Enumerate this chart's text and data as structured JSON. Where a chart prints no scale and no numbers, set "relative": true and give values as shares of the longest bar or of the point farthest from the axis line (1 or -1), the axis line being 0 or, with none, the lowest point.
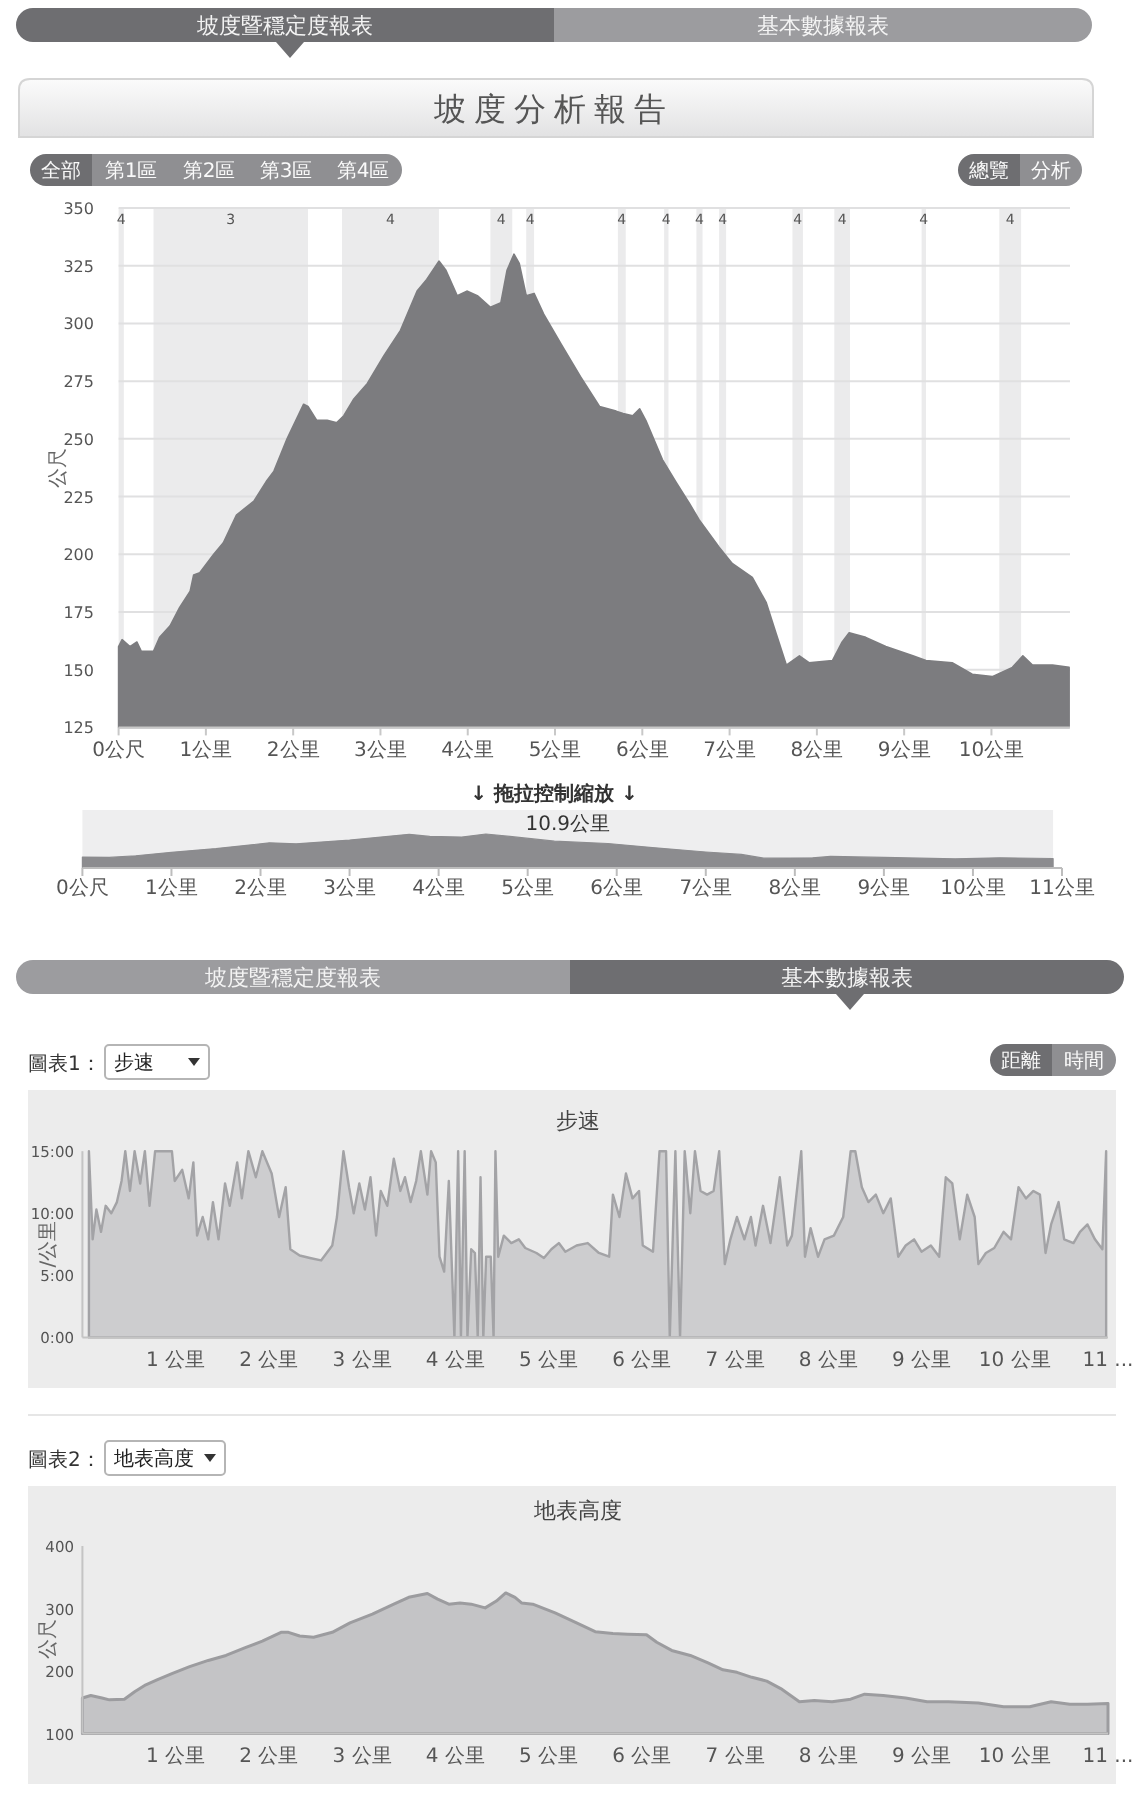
{
  "chart_data": [
    {
      "type": "area",
      "title": "坡度分析報告",
      "ylabel": "公尺",
      "series": [
        {
          "color": "#7c7c7f",
          "x": [
            0,
            0.04,
            0.13,
            0.21,
            0.26,
            0.4,
            0.47,
            0.59,
            0.7,
            0.82,
            0.86,
            0.93,
            1.09,
            1.2,
            1.35,
            1.55,
            1.7,
            1.78,
            1.93,
            2.12,
            2.17,
            2.27,
            2.39,
            2.5,
            2.58,
            2.69,
            2.85,
            3.04,
            3.23,
            3.42,
            3.53,
            3.67,
            3.75,
            3.88,
            3.99,
            4.11,
            4.26,
            4.38,
            4.45,
            4.53,
            4.59,
            4.67,
            4.76,
            4.87,
            5.07,
            5.29,
            5.51,
            5.7,
            5.78,
            5.89,
            5.97,
            6.04,
            6.23,
            6.39,
            6.54,
            6.65,
            6.88,
            7.03,
            7.26,
            7.42,
            7.53,
            7.65,
            7.8,
            7.91,
            8.18,
            8.29,
            8.37,
            8.56,
            8.79,
            9.1,
            9.25,
            9.55,
            9.78,
            10.01,
            10.24,
            10.36,
            10.47,
            10.7,
            10.89
          ],
          "values": [
            160,
            163,
            160,
            162,
            158,
            158,
            164,
            169,
            177,
            184,
            191,
            192,
            200,
            205,
            217,
            223,
            232,
            236,
            250,
            265,
            264,
            258,
            258,
            257,
            260,
            267,
            274,
            286,
            297,
            314,
            319,
            327,
            323,
            312,
            314,
            312,
            307,
            309,
            323,
            330,
            326,
            312,
            313,
            304,
            291,
            277,
            264,
            262,
            261,
            260,
            263,
            258,
            241,
            231,
            222,
            215,
            203,
            196,
            190,
            179,
            166,
            152,
            156,
            153,
            154,
            162,
            166,
            164,
            160,
            156,
            154,
            153,
            148,
            147,
            151,
            156,
            152,
            152,
            151
          ]
        }
      ],
      "xlim": [
        0,
        10.9
      ],
      "xticks": [
        {
          "value": 0,
          "label": "0公尺"
        },
        {
          "value": 1,
          "label": "1公里"
        },
        {
          "value": 2,
          "label": "2公里"
        },
        {
          "value": 3,
          "label": "3公里"
        },
        {
          "value": 4,
          "label": "4公里"
        },
        {
          "value": 5,
          "label": "5公里"
        },
        {
          "value": 6,
          "label": "6公里"
        },
        {
          "value": 7,
          "label": "7公里"
        },
        {
          "value": 8,
          "label": "8公里"
        },
        {
          "value": 9,
          "label": "9公里"
        },
        {
          "value": 10,
          "label": "10公里"
        }
      ],
      "ylim": [
        125,
        350
      ],
      "yticks": [
        125,
        150,
        175,
        200,
        225,
        250,
        275,
        300,
        325,
        350
      ],
      "grid": "y",
      "bands": [
        {
          "axis": "x",
          "from": 0,
          "to": 0.06,
          "label": "4",
          "color": "#ebebec"
        },
        {
          "axis": "x",
          "from": 0.4,
          "to": 2.17,
          "label": "3",
          "color": "#ebebec"
        },
        {
          "axis": "x",
          "from": 2.56,
          "to": 3.67,
          "label": "4",
          "color": "#ebebec"
        },
        {
          "axis": "x",
          "from": 4.26,
          "to": 4.51,
          "label": "4",
          "color": "#ebebec"
        },
        {
          "axis": "x",
          "from": 4.67,
          "to": 4.76,
          "label": "4",
          "color": "#ebebec"
        },
        {
          "axis": "x",
          "from": 5.72,
          "to": 5.81,
          "label": "4",
          "color": "#ebebec"
        },
        {
          "axis": "x",
          "from": 6.25,
          "to": 6.3,
          "label": "4",
          "color": "#ebebec"
        },
        {
          "axis": "x",
          "from": 6.62,
          "to": 6.69,
          "label": "4",
          "color": "#ebebec"
        },
        {
          "axis": "x",
          "from": 6.88,
          "to": 6.96,
          "label": "4",
          "color": "#ebebec"
        },
        {
          "axis": "x",
          "from": 7.72,
          "to": 7.84,
          "label": "4",
          "color": "#ebebec"
        },
        {
          "axis": "x",
          "from": 8.2,
          "to": 8.38,
          "label": "4",
          "color": "#ebebec"
        },
        {
          "axis": "x",
          "from": 9.2,
          "to": 9.25,
          "label": "4",
          "color": "#ebebec"
        },
        {
          "axis": "x",
          "from": 10.09,
          "to": 10.34,
          "label": "4",
          "color": "#ebebec"
        }
      ],
      "annotations": [
        "坡度暨穩定度報表",
        "基本數據報表",
        "全部",
        "第1區",
        "第2區",
        "第3區",
        "第4區",
        "總覽",
        "分析"
      ]
    },
    {
      "type": "area",
      "relative": true,
      "series": [
        {
          "color": "#8c8c8f",
          "x": [
            0,
            0.3,
            0.6,
            1,
            1.5,
            2.1,
            2.4,
            3,
            3.67,
            3.9,
            4.26,
            4.53,
            4.8,
            5.3,
            5.9,
            6.4,
            7,
            7.4,
            7.65,
            8.2,
            8.4,
            9,
            9.8,
            10.3,
            10.9
          ],
          "values": [
            0.32,
            0.31,
            0.36,
            0.46,
            0.57,
            0.74,
            0.71,
            0.82,
            0.99,
            0.93,
            0.91,
            1,
            0.93,
            0.79,
            0.72,
            0.6,
            0.47,
            0.4,
            0.29,
            0.3,
            0.34,
            0.31,
            0.27,
            0.3,
            0.28
          ]
        }
      ],
      "xlim": [
        0,
        11
      ],
      "xticks": [
        {
          "value": 0,
          "label": "0公尺"
        },
        {
          "value": 1,
          "label": "1公里"
        },
        {
          "value": 2,
          "label": "2公里"
        },
        {
          "value": 3,
          "label": "3公里"
        },
        {
          "value": 4,
          "label": "4公里"
        },
        {
          "value": 5,
          "label": "5公里"
        },
        {
          "value": 6,
          "label": "6公里"
        },
        {
          "value": 7,
          "label": "7公里"
        },
        {
          "value": 8,
          "label": "8公里"
        },
        {
          "value": 9,
          "label": "9公里"
        },
        {
          "value": 10,
          "label": "10公里"
        },
        {
          "value": 11,
          "label": "11公里"
        }
      ],
      "bands": [
        {
          "axis": "x",
          "from": 0,
          "to": 10.9,
          "label": "10.9公里",
          "color": "#eeeeef"
        }
      ],
      "annotations": [
        "↓ 拖拉控制縮放 ↓"
      ]
    },
    {
      "type": "area",
      "title": "步速",
      "ylabel": "/公里",
      "series": [
        {
          "color": "#a3a3a6",
          "x": [
            0.07,
            0.11,
            0.15,
            0.2,
            0.25,
            0.31,
            0.37,
            0.42,
            0.46,
            0.51,
            0.56,
            0.62,
            0.67,
            0.72,
            0.78,
            0.96,
            0.99,
            1.07,
            1.14,
            1.19,
            1.23,
            1.29,
            1.35,
            1.4,
            1.46,
            1.53,
            1.58,
            1.66,
            1.71,
            1.78,
            1.86,
            1.93,
            2.03,
            2.11,
            2.18,
            2.23,
            2.33,
            2.44,
            2.56,
            2.68,
            2.73,
            2.8,
            2.86,
            2.91,
            2.97,
            3.03,
            3.09,
            3.15,
            3.2,
            3.27,
            3.34,
            3.41,
            3.46,
            3.52,
            3.58,
            3.63,
            3.7,
            3.74,
            3.79,
            3.83,
            3.88,
            3.93,
            3.99,
            4.03,
            4.06,
            4.1,
            4.13,
            4.17,
            4.21,
            4.24,
            4.27,
            4.3,
            4.33,
            4.38,
            4.41,
            4.43,
            4.46,
            4.52,
            4.6,
            4.68,
            4.75,
            4.87,
            4.95,
            5.03,
            5.11,
            5.18,
            5.3,
            5.42,
            5.54,
            5.65,
            5.69,
            5.76,
            5.83,
            5.9,
            5.97,
            6.01,
            6.12,
            6.19,
            6.26,
            6.3,
            6.36,
            6.41,
            6.46,
            6.52,
            6.57,
            6.63,
            6.7,
            6.77,
            6.83,
            6.89,
            6.95,
            7.02,
            7.1,
            7.17,
            7.22,
            7.3,
            7.38,
            7.48,
            7.56,
            7.61,
            7.71,
            7.75,
            7.81,
            7.89,
            7.96,
            8.06,
            8.16,
            8.24,
            8.29,
            8.36,
            8.43,
            8.51,
            8.59,
            8.67,
            8.75,
            8.83,
            8.92,
            9,
            9.1,
            9.19,
            9.26,
            9.33,
            9.41,
            9.49,
            9.57,
            9.61,
            9.69,
            9.78,
            9.88,
            9.96,
            10.04,
            10.12,
            10.2,
            10.27,
            10.33,
            10.39,
            10.47,
            10.53,
            10.63,
            10.7,
            10.78,
            10.86,
            10.94,
            10.98
          ],
          "values": [
            15,
            7.9,
            10.3,
            8.5,
            10.6,
            10,
            10.9,
            12.6,
            15,
            11.8,
            15,
            12.4,
            15,
            10.6,
            15,
            15,
            12.6,
            13.5,
            11.2,
            14.1,
            8.2,
            9.7,
            7.9,
            10.9,
            7.9,
            12.4,
            10.6,
            14.1,
            11.2,
            15,
            12.9,
            15,
            13.2,
            9.7,
            12.1,
            7.1,
            6.6,
            6.4,
            6.2,
            7.4,
            9.7,
            15,
            12.1,
            10,
            12.4,
            10.3,
            12.9,
            8.2,
            11.8,
            10.6,
            14.4,
            11.8,
            12.9,
            10.9,
            12.6,
            15,
            11.5,
            15,
            14.1,
            6.5,
            5.3,
            12.6,
            0,
            15,
            0,
            15,
            0,
            7.1,
            6.8,
            0,
            12.9,
            0,
            6.5,
            6.5,
            0,
            15,
            6.5,
            8.2,
            7.6,
            7.9,
            7.2,
            6.8,
            6.4,
            7.1,
            7.6,
            6.9,
            7.4,
            7.6,
            6.8,
            6.5,
            11.5,
            9.7,
            13.2,
            11.2,
            11.8,
            7.4,
            6.9,
            15,
            15,
            0,
            15,
            0,
            15,
            10,
            15,
            11.8,
            11.5,
            11.8,
            15,
            5.9,
            7.9,
            9.7,
            7.9,
            9.7,
            7.4,
            10.6,
            7.6,
            12.9,
            7.4,
            8.2,
            15,
            6.5,
            8.8,
            6.5,
            7.9,
            8.2,
            9.7,
            15,
            15,
            12.1,
            10.9,
            11.5,
            10,
            11.2,
            6.5,
            7.4,
            7.9,
            6.9,
            7.4,
            6.5,
            12.9,
            12.4,
            7.9,
            11.5,
            9.7,
            5.9,
            6.8,
            7.2,
            8.5,
            7.9,
            12.1,
            11.2,
            11.8,
            11.5,
            6.8,
            9.1,
            10.9,
            7.9,
            7.6,
            8.5,
            9.1,
            7.9,
            7.1,
            15
          ]
        }
      ],
      "xlim": [
        0,
        11
      ],
      "xticks": [
        {
          "value": 1,
          "label": "1 公里"
        },
        {
          "value": 2,
          "label": "2 公里"
        },
        {
          "value": 3,
          "label": "3 公里"
        },
        {
          "value": 4,
          "label": "4 公里"
        },
        {
          "value": 5,
          "label": "5 公里"
        },
        {
          "value": 6,
          "label": "6 公里"
        },
        {
          "value": 7,
          "label": "7 公里"
        },
        {
          "value": 8,
          "label": "8 公里"
        },
        {
          "value": 9,
          "label": "9 公里"
        },
        {
          "value": 10,
          "label": "10 公里"
        },
        {
          "value": 11,
          "label": "11 ..."
        }
      ],
      "ylim": [
        0,
        15
      ],
      "yticks": [
        {
          "value": 0,
          "label": "0:00"
        },
        {
          "value": 5,
          "label": "5:00"
        },
        {
          "value": 10,
          "label": "10:00"
        },
        {
          "value": 15,
          "label": "15:00"
        }
      ],
      "annotations": [
        "坡度暨穩定度報表",
        "基本數據報表",
        "圖表1：",
        "步速",
        "距離",
        "時間"
      ]
    },
    {
      "type": "area",
      "title": "地表高度",
      "ylabel": "公尺",
      "series": [
        {
          "color": "#9c9c9f",
          "x": [
            0,
            0.09,
            0.21,
            0.29,
            0.45,
            0.56,
            0.68,
            0.8,
            0.96,
            1.15,
            1.35,
            1.54,
            1.74,
            1.93,
            2.13,
            2.21,
            2.33,
            2.48,
            2.68,
            2.87,
            3.11,
            3.34,
            3.5,
            3.7,
            3.81,
            3.93,
            4.05,
            4.17,
            4.32,
            4.44,
            4.54,
            4.64,
            4.71,
            4.83,
            5.07,
            5.3,
            5.5,
            5.69,
            5.85,
            6.05,
            6.16,
            6.32,
            6.52,
            6.71,
            6.87,
            7.02,
            7.18,
            7.34,
            7.49,
            7.69,
            7.85,
            8.04,
            8.24,
            8.39,
            8.59,
            8.83,
            9.06,
            9.29,
            9.61,
            9.88,
            10.16,
            10.39,
            10.59,
            10.78,
            11
          ],
          "values": [
            157,
            161,
            157,
            154,
            155,
            167,
            178,
            186,
            196,
            207,
            217,
            225,
            237,
            248,
            262,
            262,
            256,
            254,
            262,
            277,
            291,
            307,
            318,
            324,
            315,
            307,
            309,
            307,
            301,
            312,
            325,
            318,
            309,
            307,
            293,
            277,
            263,
            260,
            259,
            258,
            246,
            233,
            225,
            213,
            202,
            198,
            190,
            184,
            172,
            151,
            153,
            151,
            155,
            163,
            161,
            157,
            151,
            151,
            149,
            143,
            143,
            151,
            147,
            147,
            148
          ]
        }
      ],
      "xlim": [
        0,
        11
      ],
      "xticks": [
        {
          "value": 1,
          "label": "1 公里"
        },
        {
          "value": 2,
          "label": "2 公里"
        },
        {
          "value": 3,
          "label": "3 公里"
        },
        {
          "value": 4,
          "label": "4 公里"
        },
        {
          "value": 5,
          "label": "5 公里"
        },
        {
          "value": 6,
          "label": "6 公里"
        },
        {
          "value": 7,
          "label": "7 公里"
        },
        {
          "value": 8,
          "label": "8 公里"
        },
        {
          "value": 9,
          "label": "9 公里"
        },
        {
          "value": 10,
          "label": "10 公里"
        },
        {
          "value": 11,
          "label": "11 ..."
        }
      ],
      "ylim": [
        100,
        400
      ],
      "yticks": [
        100,
        200,
        300,
        400
      ],
      "annotations": [
        "圖表2：",
        "地表高度"
      ]
    }
  ]
}
